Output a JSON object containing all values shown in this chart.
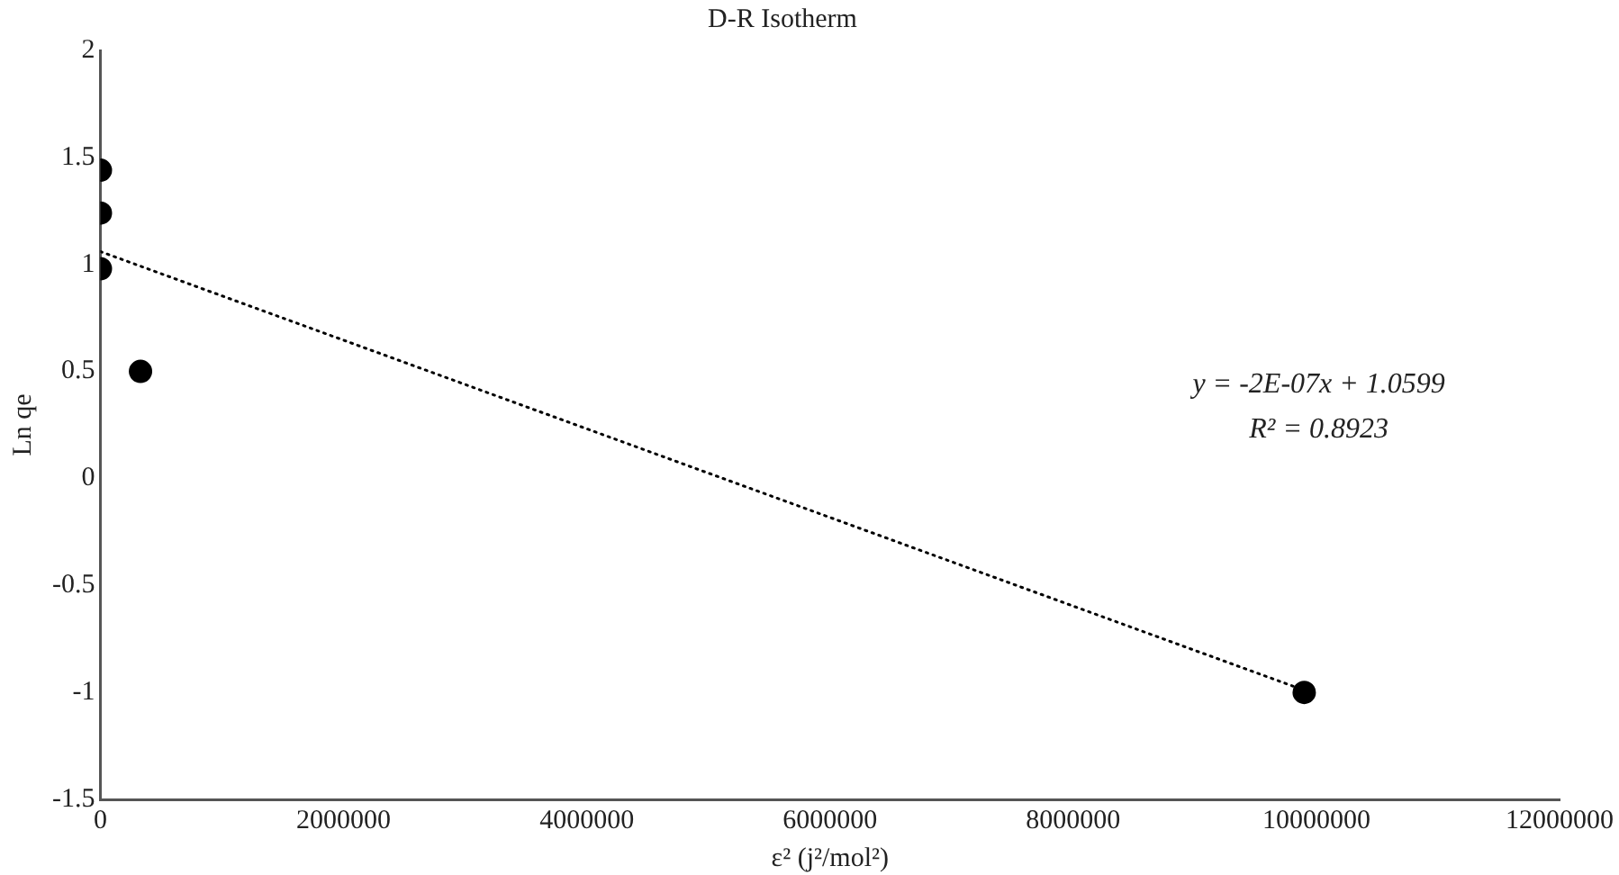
{
  "chart_data": {
    "type": "scatter",
    "title": "D-R Isotherm",
    "xlabel": "ε² (j²/mol²)",
    "ylabel": "Ln qe",
    "series": [
      {
        "type": "scatter",
        "color": "#000000",
        "marker": "circle",
        "x": [
          0,
          0,
          0,
          330000,
          9900000
        ],
        "values": [
          1.44,
          1.24,
          0.98,
          0.5,
          -1
        ]
      },
      {
        "type": "line",
        "color": "#000000",
        "line_style": "dotted",
        "marker": "none",
        "x": [
          0,
          9900000
        ],
        "values": [
          1.06,
          -0.99
        ]
      }
    ],
    "xlim": [
      0,
      12000000
    ],
    "xticks": [
      0,
      2000000,
      4000000,
      6000000,
      8000000,
      10000000,
      12000000
    ],
    "ylim": [
      -1.5,
      2
    ],
    "yticks": [
      -1.5,
      -1,
      -0.5,
      0,
      0.5,
      1,
      1.5,
      2
    ],
    "grid": false,
    "legend": false,
    "annotations": [
      "y = -2E-07x + 1.0599",
      "R² = 0.8923"
    ]
  }
}
